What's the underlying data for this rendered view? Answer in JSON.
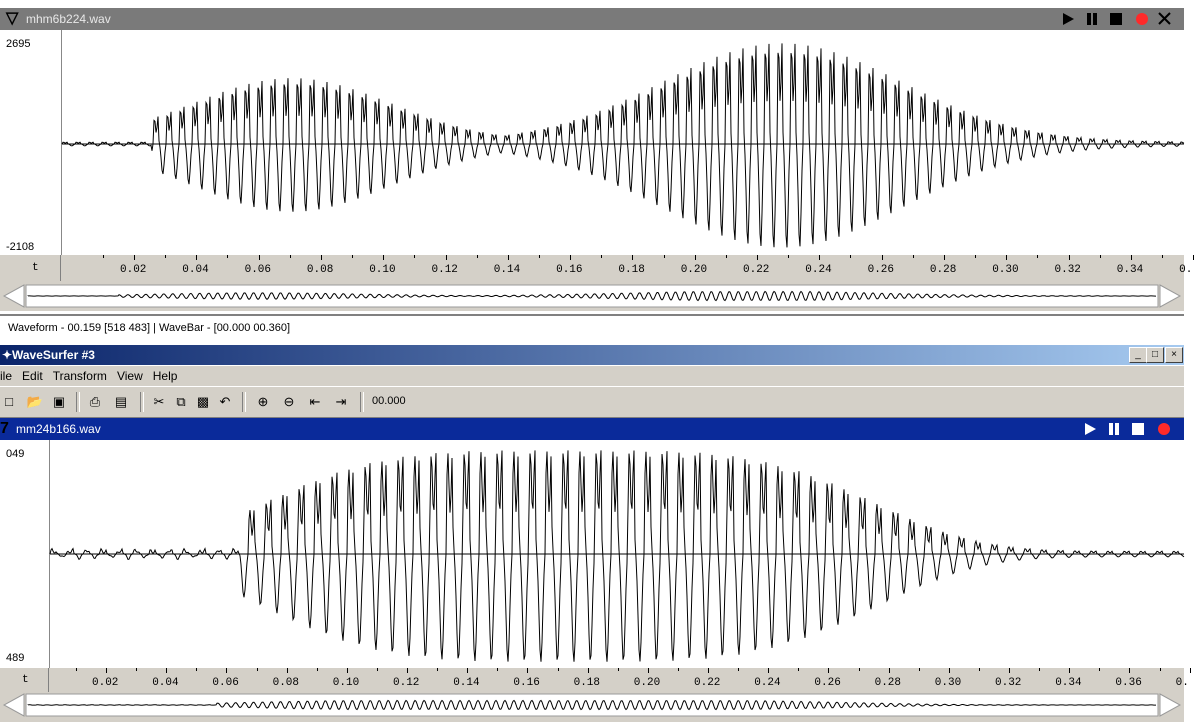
{
  "pane1": {
    "filename": "mhm6b224.wav",
    "ymax": "2695",
    "ymin": "-2108",
    "axis_label": "t",
    "ticks": [
      "0.02",
      "0.04",
      "0.06",
      "0.08",
      "0.10",
      "0.12",
      "0.14",
      "0.16",
      "0.18",
      "0.20",
      "0.22",
      "0.24",
      "0.26",
      "0.28",
      "0.30",
      "0.32",
      "0.34",
      "0."
    ]
  },
  "status": "Waveform - 00.159 [518 483] | WaveBar - [00.000 00.360]",
  "window": {
    "title": "WaveSurfer #3"
  },
  "menu": [
    "ile",
    "Edit",
    "Transform",
    "View",
    "Help"
  ],
  "toolbar": {
    "time": "00.000"
  },
  "pane2": {
    "filename": "mm24b166.wav",
    "ymax": "049",
    "ymin": "489",
    "axis_label": "t",
    "ticks": [
      "0.02",
      "0.04",
      "0.06",
      "0.08",
      "0.10",
      "0.12",
      "0.14",
      "0.16",
      "0.18",
      "0.20",
      "0.22",
      "0.24",
      "0.26",
      "0.28",
      "0.30",
      "0.32",
      "0.34",
      "0.36",
      "0."
    ]
  },
  "icons": {
    "play": "play-icon",
    "pause": "pause-icon",
    "stop": "stop-icon",
    "record": "record-icon",
    "close": "close-icon"
  },
  "colors": {
    "pane1_title_bg": "#7a7a7a",
    "pane2_title_bg": "#0a2a9a",
    "record": "#ff2a2a"
  }
}
